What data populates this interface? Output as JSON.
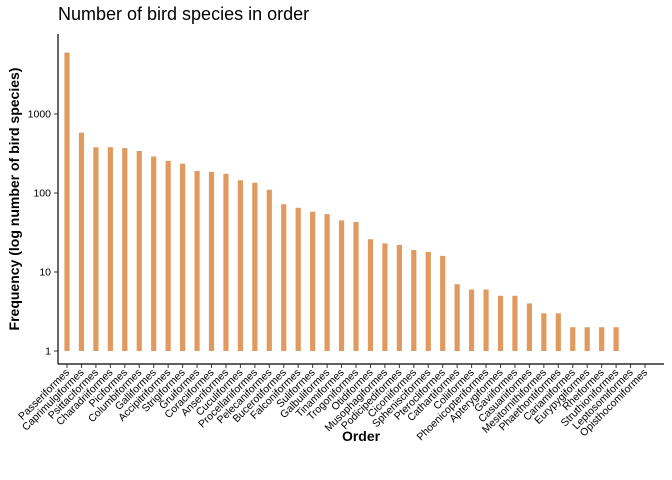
{
  "chart_data": {
    "type": "bar",
    "title": "Number of bird species in order",
    "xlabel": "Order",
    "ylabel": "Frequency (log number of bird species)",
    "y_scale": "log10",
    "yticks": [
      1,
      10,
      100,
      1000
    ],
    "ytick_labels": [
      "1",
      "10",
      "100",
      "1000"
    ],
    "ylim": [
      0.7,
      10000
    ],
    "bar_color": "#E09A5F",
    "grid": false,
    "categories": [
      "Passeriformes",
      "Caprimulgiformes",
      "Psittaciformes",
      "Charadriiformes",
      "Piciformes",
      "Columbiformes",
      "Galliformes",
      "Accipitriformes",
      "Strigiformes",
      "Gruiformes",
      "Coraciiformes",
      "Anseriformes",
      "Cuculiformes",
      "Procellariiformes",
      "Pelecaniformes",
      "Bucerotiformes",
      "Falconiformes",
      "Suliformes",
      "Galbuliformes",
      "Tinamiformes",
      "Trogoniformes",
      "Otidiformes",
      "Musophagiformes",
      "Podicipediformes",
      "Ciconiiformes",
      "Sphenisciformes",
      "Pterocliformes",
      "Cathartiformes",
      "Coliiformes",
      "Phoenicopteriformes",
      "Apterygiformes",
      "Gaviiformes",
      "Casuariiformes",
      "Mesitornithiformes",
      "Phaethontiformes",
      "Cariamiformes",
      "Eurypygiformes",
      "Rheiformes",
      "Struthioniformes",
      "Leptosomiformes",
      "Opisthocomiformes"
    ],
    "values": [
      6000,
      580,
      380,
      380,
      370,
      340,
      290,
      255,
      235,
      190,
      185,
      175,
      145,
      135,
      110,
      72,
      65,
      58,
      54,
      45,
      43,
      26,
      23,
      22,
      19,
      18,
      16,
      7,
      6,
      6,
      5,
      5,
      4,
      3,
      3,
      2,
      2,
      2,
      2,
      1,
      1
    ]
  }
}
